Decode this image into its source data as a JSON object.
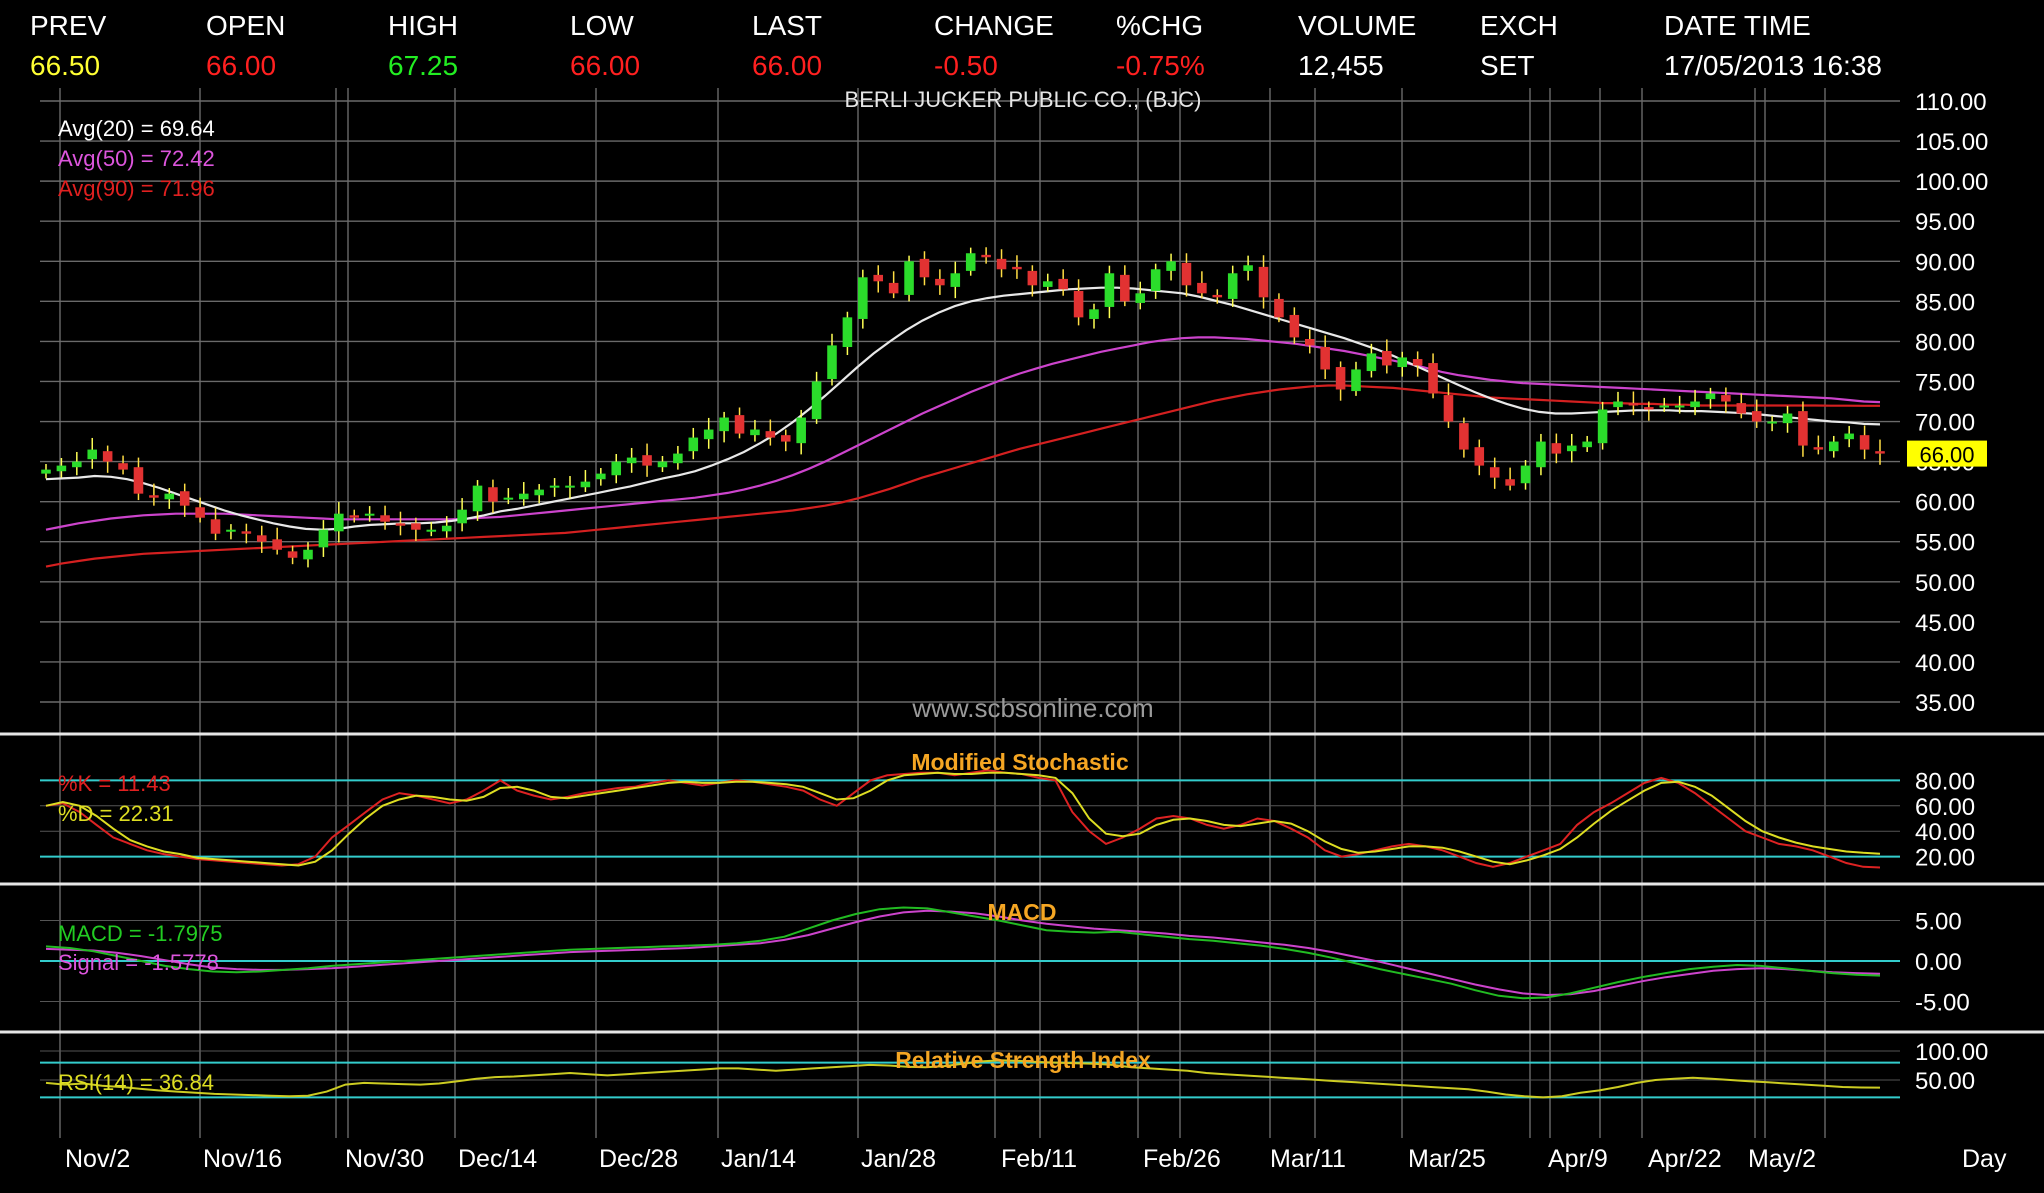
{
  "header": {
    "fields": [
      {
        "label": "PREV",
        "value": "66.50",
        "color": "#ffff33"
      },
      {
        "label": "OPEN",
        "value": "66.00",
        "color": "#ff2020"
      },
      {
        "label": "HIGH",
        "value": "67.25",
        "color": "#22ee22"
      },
      {
        "label": "LOW",
        "value": "66.00",
        "color": "#ff2020"
      },
      {
        "label": "LAST",
        "value": "66.00",
        "color": "#ff2020"
      },
      {
        "label": "CHANGE",
        "value": "-0.50",
        "color": "#ff2020"
      },
      {
        "label": "%CHG",
        "value": "-0.75%",
        "color": "#ff2020"
      },
      {
        "label": "VOLUME",
        "value": "12,455",
        "color": "#ffffff"
      },
      {
        "label": "EXCH",
        "value": "SET",
        "color": "#ffffff"
      },
      {
        "label": "DATE TIME",
        "value": "17/05/2013 16:38",
        "color": "#ffffff"
      }
    ]
  },
  "chart_data": {
    "type": "candlestick",
    "title": "BERLI JUCKER PUBLIC CO., (BJC)",
    "watermark": "www.scbsonline.com",
    "x_axis_label": "Day",
    "x_tick_labels": [
      "Nov/2",
      "Nov/16",
      "Nov/30",
      "Dec/14",
      "Dec/28",
      "Jan/14",
      "Jan/28",
      "Feb/11",
      "Feb/26",
      "Mar/11",
      "Mar/25",
      "Apr/9",
      "Apr/22",
      "May/2"
    ],
    "price_panel": {
      "ylim": [
        35,
        110
      ],
      "y_ticks": [
        "110.00",
        "105.00",
        "100.00",
        "95.00",
        "90.00",
        "85.00",
        "80.00",
        "75.00",
        "70.00",
        "65.00",
        "60.00",
        "55.00",
        "50.00",
        "45.00",
        "40.00",
        "35.00"
      ],
      "last_price_label": "66.00",
      "indicator_labels": [
        {
          "text": "Avg(20)  =  69.64",
          "color": "#ffffff"
        },
        {
          "text": "Avg(50)  =  72.42",
          "color": "#dd55dd"
        },
        {
          "text": "Avg(90)  =  71.96",
          "color": "#e02020"
        }
      ],
      "close": [
        64.0,
        64.5,
        65.0,
        66.5,
        65.0,
        64.0,
        61.0,
        60.5,
        61.0,
        59.5,
        58.0,
        56.0,
        56.5,
        56.0,
        55.0,
        54.0,
        53.0,
        54.0,
        56.5,
        58.5,
        58.0,
        58.5,
        57.5,
        57.0,
        56.5,
        56.5,
        57.0,
        59.0,
        62.0,
        60.0,
        60.5,
        61.0,
        61.5,
        62.0,
        62.0,
        62.5,
        63.5,
        65.0,
        65.5,
        64.5,
        65.0,
        66.0,
        68.0,
        69.0,
        70.5,
        68.5,
        69.0,
        68.0,
        67.5,
        70.5,
        75.0,
        79.5,
        83.0,
        88.0,
        87.5,
        86.0,
        90.0,
        88.0,
        87.0,
        88.5,
        91.0,
        90.5,
        89.0,
        89.0,
        87.0,
        87.5,
        86.5,
        83.0,
        84.0,
        88.5,
        85.0,
        86.0,
        89.0,
        90.0,
        87.0,
        86.0,
        85.5,
        88.5,
        89.5,
        85.5,
        83.0,
        80.5,
        79.5,
        76.5,
        74.0,
        76.5,
        78.5,
        77.0,
        78.0,
        77.0,
        73.5,
        70.0,
        66.5,
        64.5,
        63.0,
        62.0,
        64.5,
        67.5,
        66.0,
        67.0,
        67.5,
        71.5,
        72.5,
        72.0,
        71.5,
        72.0,
        72.0,
        72.5,
        73.5,
        72.5,
        71.0,
        70.0,
        70.0,
        71.0,
        67.0,
        66.5,
        67.5,
        68.5,
        66.5,
        66.0
      ],
      "sma20": [
        62.8,
        62.9,
        63.0,
        63.2,
        63.1,
        62.8,
        62.3,
        61.7,
        61.0,
        60.3,
        59.6,
        58.9,
        58.3,
        57.8,
        57.3,
        56.9,
        56.6,
        56.5,
        56.6,
        56.9,
        57.1,
        57.2,
        57.3,
        57.3,
        57.4,
        57.6,
        57.9,
        58.3,
        58.8,
        59.1,
        59.5,
        59.9,
        60.3,
        60.7,
        61.1,
        61.5,
        61.9,
        62.4,
        62.9,
        63.3,
        63.8,
        64.5,
        65.3,
        66.2,
        67.3,
        68.5,
        69.9,
        71.5,
        73.2,
        75.0,
        76.8,
        78.5,
        80.0,
        81.4,
        82.6,
        83.6,
        84.4,
        85.0,
        85.4,
        85.7,
        85.9,
        86.1,
        86.3,
        86.5,
        86.6,
        86.7,
        86.7,
        86.6,
        86.4,
        86.2,
        86.0,
        85.6,
        85.1,
        84.6,
        84.0,
        83.4,
        82.8,
        82.2,
        81.6,
        81.0,
        80.4,
        79.7,
        79.0,
        78.2,
        77.3,
        76.4,
        75.5,
        74.6,
        73.7,
        72.9,
        72.2,
        71.6,
        71.2,
        71.0,
        71.0,
        71.1,
        71.2,
        71.3,
        71.4,
        71.4,
        71.4,
        71.3,
        71.3,
        71.2,
        71.1,
        71.0,
        70.8,
        70.6,
        70.4,
        70.2,
        70.0,
        69.9,
        69.7,
        69.64
      ],
      "sma50": [
        56.5,
        56.9,
        57.3,
        57.6,
        57.9,
        58.1,
        58.3,
        58.4,
        58.5,
        58.5,
        58.5,
        58.5,
        58.4,
        58.3,
        58.2,
        58.1,
        58.0,
        57.9,
        57.8,
        57.8,
        57.8,
        57.8,
        57.8,
        57.8,
        57.8,
        57.8,
        57.9,
        58.0,
        58.1,
        58.3,
        58.5,
        58.7,
        58.9,
        59.1,
        59.3,
        59.5,
        59.7,
        59.9,
        60.1,
        60.3,
        60.5,
        60.8,
        61.1,
        61.5,
        62.0,
        62.6,
        63.3,
        64.1,
        65.0,
        66.0,
        67.0,
        68.0,
        69.0,
        70.0,
        71.0,
        71.9,
        72.8,
        73.7,
        74.5,
        75.3,
        76.0,
        76.6,
        77.2,
        77.7,
        78.2,
        78.7,
        79.1,
        79.5,
        79.9,
        80.2,
        80.4,
        80.5,
        80.5,
        80.4,
        80.3,
        80.1,
        79.9,
        79.7,
        79.4,
        79.1,
        78.8,
        78.4,
        78.0,
        77.6,
        77.2,
        76.7,
        76.2,
        75.8,
        75.5,
        75.2,
        75.0,
        74.8,
        74.7,
        74.6,
        74.5,
        74.4,
        74.3,
        74.2,
        74.1,
        74.0,
        73.9,
        73.8,
        73.7,
        73.6,
        73.5,
        73.4,
        73.3,
        73.2,
        73.1,
        73.0,
        72.9,
        72.7,
        72.5,
        72.42
      ],
      "sma90": [
        51.9,
        52.3,
        52.6,
        52.9,
        53.1,
        53.3,
        53.5,
        53.6,
        53.7,
        53.8,
        53.9,
        54.0,
        54.1,
        54.2,
        54.3,
        54.4,
        54.5,
        54.6,
        54.7,
        54.8,
        54.9,
        55.0,
        55.1,
        55.2,
        55.3,
        55.4,
        55.5,
        55.6,
        55.7,
        55.8,
        55.9,
        56.0,
        56.1,
        56.3,
        56.5,
        56.7,
        56.9,
        57.1,
        57.3,
        57.5,
        57.7,
        57.9,
        58.1,
        58.3,
        58.5,
        58.7,
        58.9,
        59.2,
        59.5,
        59.9,
        60.4,
        61.0,
        61.6,
        62.3,
        63.0,
        63.6,
        64.2,
        64.8,
        65.4,
        66.0,
        66.6,
        67.1,
        67.6,
        68.1,
        68.6,
        69.1,
        69.6,
        70.1,
        70.6,
        71.1,
        71.6,
        72.1,
        72.6,
        73.0,
        73.4,
        73.7,
        74.0,
        74.2,
        74.4,
        74.5,
        74.5,
        74.4,
        74.3,
        74.2,
        74.0,
        73.8,
        73.6,
        73.4,
        73.2,
        73.0,
        72.9,
        72.8,
        72.7,
        72.6,
        72.5,
        72.4,
        72.3,
        72.3,
        72.2,
        72.2,
        72.1,
        72.1,
        72.0,
        72.0,
        72.0,
        72.0,
        72.0,
        72.0,
        72.0,
        72.0,
        71.98,
        71.97,
        71.96,
        71.96
      ]
    },
    "stochastic_panel": {
      "title": "Modified Stochastic",
      "ylim": [
        0,
        100
      ],
      "y_ticks": [
        "80.00",
        "60.00",
        "40.00",
        "20.00"
      ],
      "bands": [
        80,
        20
      ],
      "labels": [
        {
          "text": "%K  =  11.43",
          "color": "#e02020"
        },
        {
          "text": "%D  =  22.31",
          "color": "#dddd22"
        }
      ],
      "k": [
        60,
        62,
        55,
        45,
        35,
        30,
        25,
        22,
        20,
        18,
        17,
        16,
        15,
        14,
        13,
        14,
        20,
        35,
        45,
        55,
        65,
        70,
        68,
        65,
        62,
        65,
        72,
        80,
        72,
        68,
        65,
        67,
        70,
        72,
        74,
        75,
        78,
        80,
        78,
        76,
        78,
        80,
        79,
        77,
        75,
        72,
        65,
        60,
        70,
        80,
        84,
        85,
        86,
        86,
        84,
        86,
        88,
        86,
        85,
        82,
        80,
        55,
        40,
        30,
        35,
        42,
        50,
        52,
        50,
        45,
        42,
        45,
        50,
        48,
        42,
        35,
        25,
        20,
        22,
        25,
        28,
        30,
        28,
        25,
        20,
        15,
        12,
        15,
        20,
        25,
        30,
        45,
        55,
        62,
        70,
        78,
        82,
        78,
        70,
        60,
        50,
        40,
        35,
        30,
        28,
        25,
        20,
        15,
        12,
        11.43
      ],
      "d": [
        60,
        63,
        60,
        52,
        42,
        33,
        28,
        24,
        22,
        19,
        18,
        17,
        16,
        15,
        14,
        13,
        16,
        25,
        38,
        50,
        60,
        65,
        68,
        67,
        65,
        64,
        67,
        74,
        75,
        72,
        67,
        66,
        68,
        70,
        72,
        74,
        76,
        78,
        79,
        78,
        78,
        79,
        79,
        78,
        77,
        75,
        70,
        65,
        66,
        72,
        80,
        84,
        85,
        86,
        85,
        85,
        86,
        86,
        85,
        84,
        82,
        70,
        50,
        38,
        36,
        38,
        45,
        49,
        50,
        48,
        45,
        44,
        46,
        48,
        46,
        40,
        32,
        26,
        23,
        24,
        26,
        28,
        28,
        27,
        24,
        20,
        16,
        14,
        17,
        21,
        26,
        35,
        46,
        56,
        64,
        72,
        78,
        79,
        75,
        68,
        58,
        48,
        40,
        35,
        31,
        28,
        26,
        24,
        23,
        22.31
      ]
    },
    "macd_panel": {
      "title": "MACD",
      "ylim": [
        -7.5,
        9
      ],
      "y_ticks": [
        "5.00",
        "0.00",
        "-5.00"
      ],
      "labels": [
        {
          "text": "MACD  =  -1.7975",
          "color": "#22cc22"
        },
        {
          "text": "Signal  =  -1.5778",
          "color": "#dd55dd"
        }
      ],
      "macd": [
        1.8,
        1.6,
        1.2,
        0.6,
        0.0,
        -0.6,
        -1.0,
        -1.3,
        -1.4,
        -1.3,
        -1.1,
        -0.9,
        -0.6,
        -0.4,
        -0.2,
        0.0,
        0.2,
        0.4,
        0.6,
        0.8,
        1.0,
        1.2,
        1.4,
        1.5,
        1.6,
        1.7,
        1.8,
        1.9,
        2.0,
        2.2,
        2.5,
        3.0,
        4.0,
        5.0,
        5.8,
        6.4,
        6.6,
        6.5,
        6.0,
        5.5,
        5.0,
        4.4,
        3.8,
        3.6,
        3.5,
        3.6,
        3.3,
        3.0,
        2.7,
        2.5,
        2.2,
        1.9,
        1.5,
        1.0,
        0.4,
        -0.3,
        -1.0,
        -1.6,
        -2.2,
        -2.8,
        -3.6,
        -4.3,
        -4.6,
        -4.5,
        -4.0,
        -3.3,
        -2.6,
        -2.0,
        -1.5,
        -1.0,
        -0.7,
        -0.5,
        -0.6,
        -0.9,
        -1.2,
        -1.5,
        -1.7,
        -1.7975
      ],
      "signal": [
        1.5,
        1.4,
        1.3,
        1.0,
        0.6,
        0.1,
        -0.4,
        -0.8,
        -1.0,
        -1.1,
        -1.1,
        -1.0,
        -0.9,
        -0.7,
        -0.5,
        -0.3,
        -0.1,
        0.1,
        0.3,
        0.5,
        0.7,
        0.9,
        1.1,
        1.2,
        1.3,
        1.4,
        1.5,
        1.6,
        1.8,
        2.0,
        2.2,
        2.6,
        3.2,
        4.0,
        4.8,
        5.5,
        6.0,
        6.2,
        6.1,
        5.9,
        5.5,
        5.0,
        4.6,
        4.3,
        4.0,
        3.8,
        3.6,
        3.4,
        3.1,
        2.9,
        2.6,
        2.3,
        2.0,
        1.6,
        1.1,
        0.5,
        -0.1,
        -0.8,
        -1.5,
        -2.2,
        -2.9,
        -3.5,
        -4.0,
        -4.2,
        -4.1,
        -3.7,
        -3.1,
        -2.5,
        -2.0,
        -1.6,
        -1.2,
        -1.0,
        -0.9,
        -1.0,
        -1.2,
        -1.4,
        -1.5,
        -1.5778
      ]
    },
    "rsi_panel": {
      "title": "Relative Strength Index",
      "ylim": [
        0,
        100
      ],
      "y_ticks": [
        "100.00",
        "50.00"
      ],
      "bands": [
        80,
        20
      ],
      "labels": [
        {
          "text": "RSI(14)  =  36.84",
          "color": "#dddd22"
        }
      ],
      "rsi": [
        45,
        42,
        44,
        40,
        38,
        35,
        32,
        30,
        28,
        26,
        25,
        24,
        23,
        22,
        23,
        30,
        42,
        45,
        44,
        43,
        42,
        44,
        48,
        52,
        55,
        56,
        58,
        60,
        62,
        60,
        58,
        60,
        62,
        64,
        66,
        68,
        70,
        70,
        68,
        66,
        68,
        70,
        72,
        74,
        76,
        75,
        73,
        72,
        74,
        78,
        82,
        84,
        83,
        81,
        80,
        79,
        78,
        76,
        72,
        70,
        68,
        66,
        62,
        60,
        58,
        56,
        54,
        52,
        50,
        48,
        46,
        44,
        42,
        40,
        38,
        36,
        34,
        30,
        25,
        22,
        20,
        22,
        28,
        32,
        38,
        45,
        50,
        52,
        54,
        52,
        50,
        48,
        46,
        44,
        42,
        40,
        38,
        37,
        36.84
      ]
    }
  }
}
